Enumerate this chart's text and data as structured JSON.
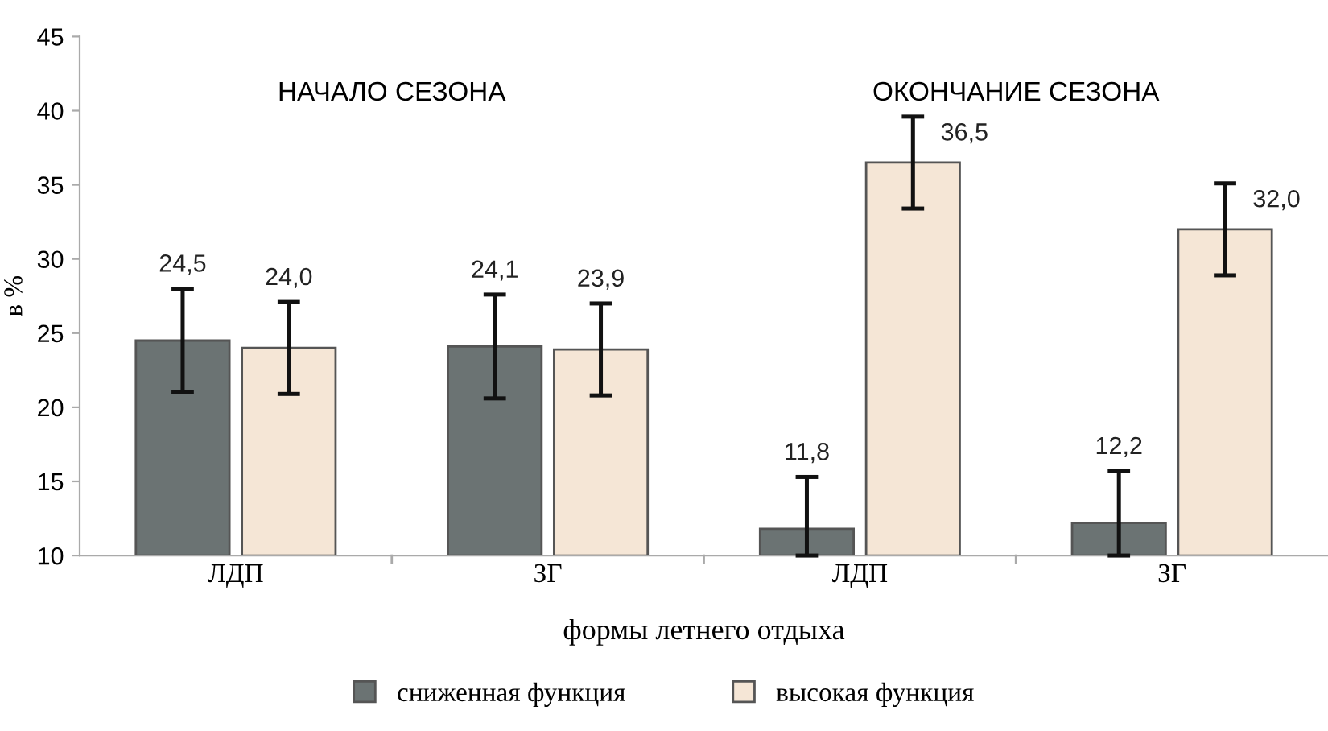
{
  "chart_data": {
    "type": "bar",
    "xlabel": "формы летнего отдыха",
    "ylabel": "в %",
    "categories": [
      "ЛДП",
      "ЗГ",
      "ЛДП",
      "ЗГ"
    ],
    "series": [
      {
        "name": "сниженная функция",
        "color": "#6b7373",
        "values": [
          24.5,
          24.1,
          11.8,
          12.2
        ],
        "errors": [
          3.5,
          3.5,
          [
            10,
            15.3
          ],
          [
            10,
            15.7
          ]
        ],
        "value_labels": [
          "24,5",
          "24,1",
          "11,8",
          "12,2"
        ]
      },
      {
        "name": "высокая функция",
        "color": "#f5e6d6",
        "values": [
          24.0,
          23.9,
          36.5,
          32.0
        ],
        "errors": [
          3.1,
          3.1,
          3.1,
          3.1
        ],
        "value_labels": [
          "24,0",
          "23,9",
          "36,5",
          "32,0"
        ]
      }
    ],
    "annotations": [
      "НАЧАЛО СЕЗОНА",
      "ОКОНЧАНИЕ СЕЗОНА"
    ],
    "ylim": [
      10,
      45
    ],
    "yticks": [
      10,
      15,
      20,
      25,
      30,
      35,
      40,
      45
    ],
    "grid": false,
    "legend": "bottom"
  }
}
